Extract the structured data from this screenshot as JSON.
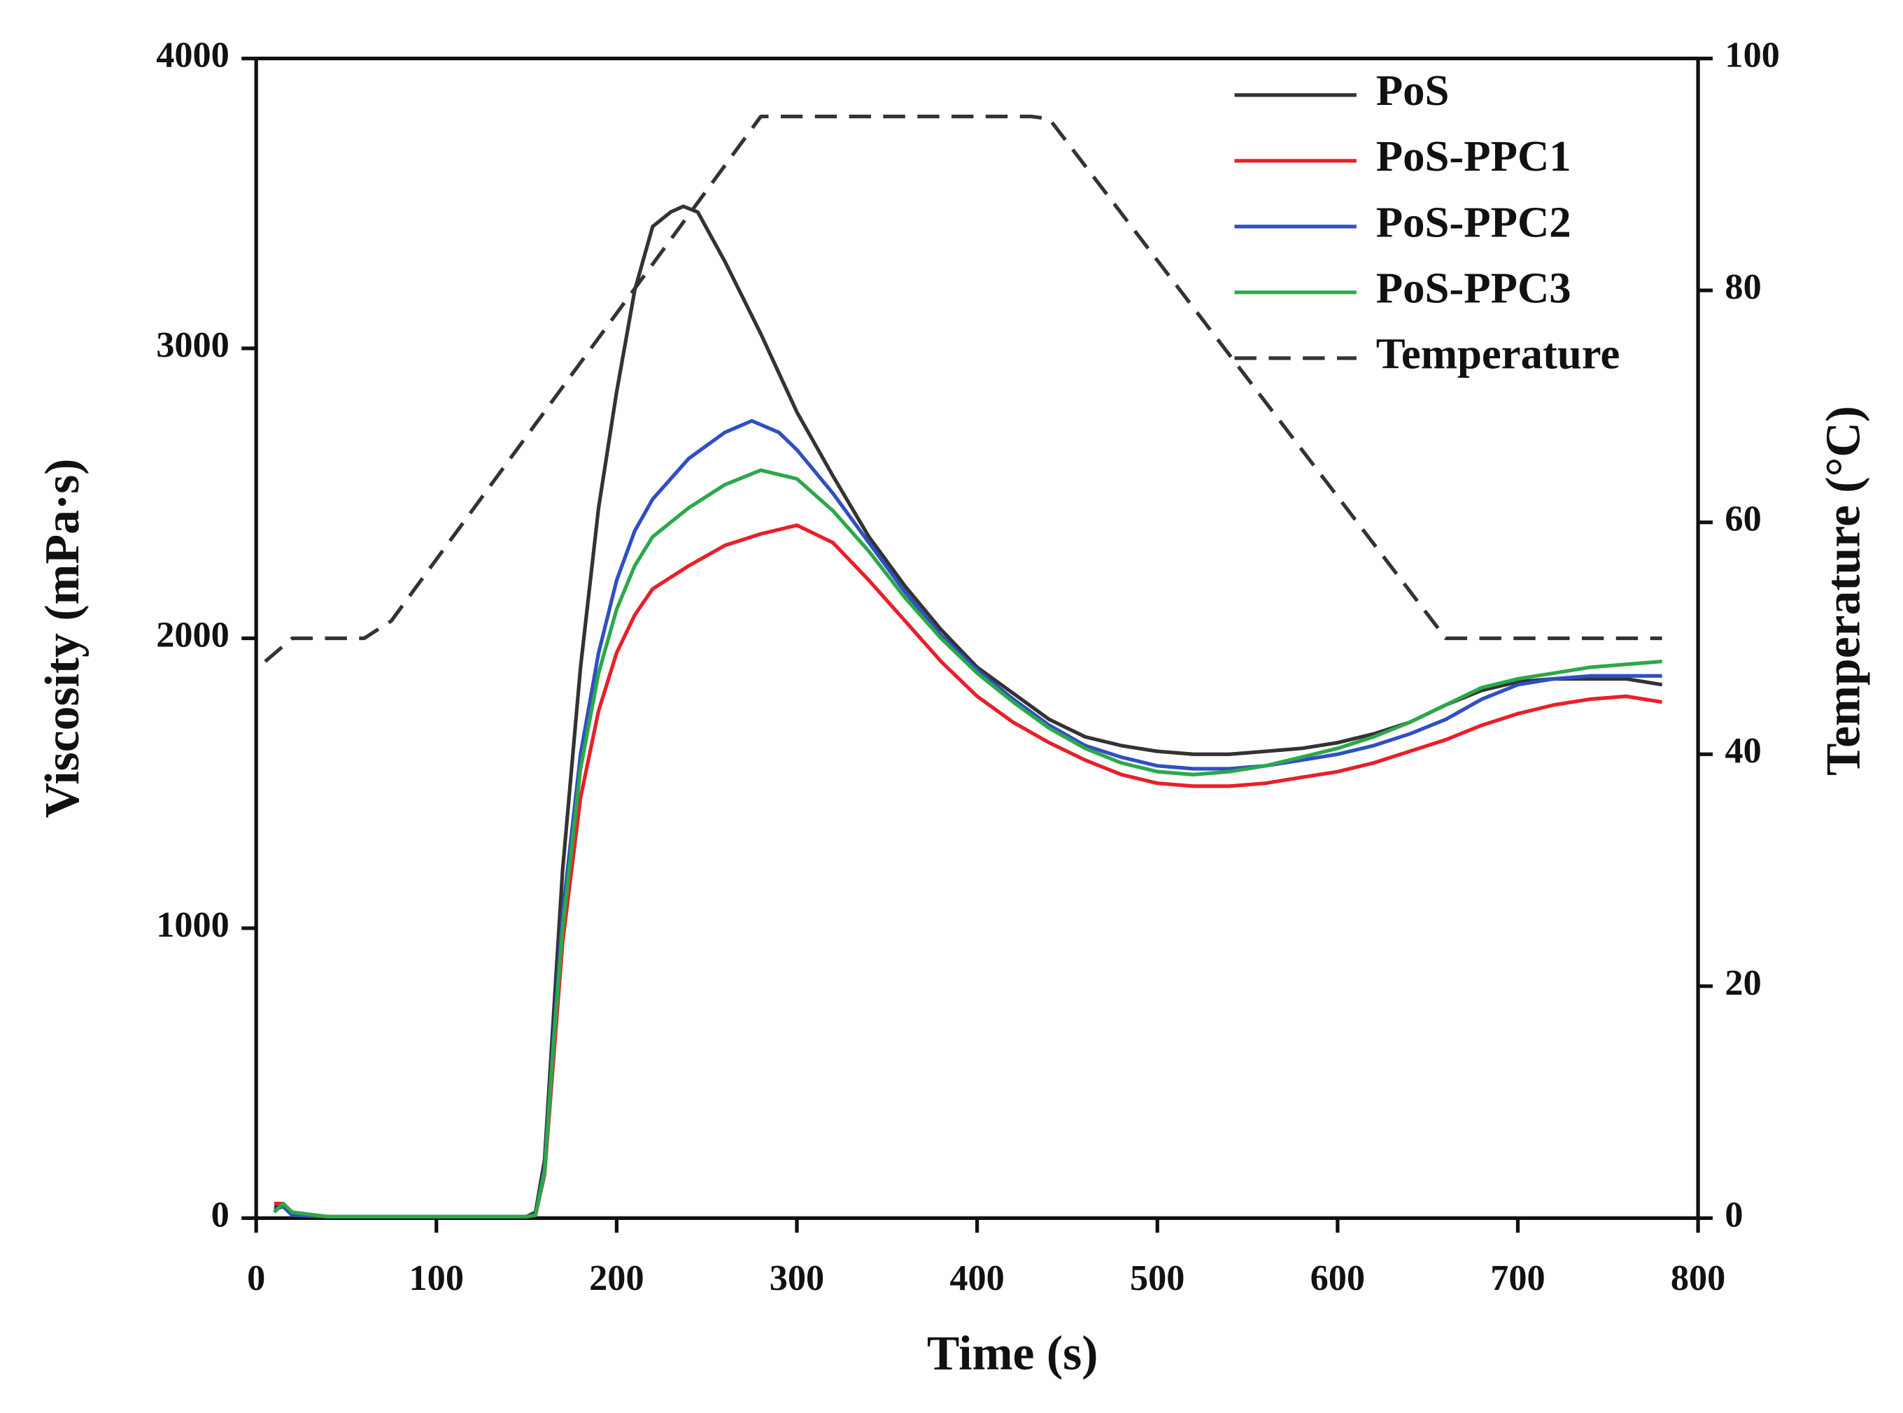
{
  "chart_data": {
    "type": "line",
    "x_label": "Time (s)",
    "y_label": "Viscosity (mPa·s)",
    "y2_label": "Temperature (°C)",
    "xlim": [
      0,
      800
    ],
    "xticks": [
      0,
      100,
      200,
      300,
      400,
      500,
      600,
      700,
      800
    ],
    "ylim": [
      0,
      4000
    ],
    "yticks": [
      0,
      1000,
      2000,
      3000,
      4000
    ],
    "y2lim": [
      0,
      100
    ],
    "y2ticks": [
      0,
      20,
      40,
      60,
      80,
      100
    ],
    "legend": "top-right",
    "series": [
      {
        "name": "PoS",
        "color": "#333333",
        "x": [
          10,
          15,
          20,
          40,
          100,
          150,
          155,
          160,
          165,
          170,
          180,
          190,
          200,
          210,
          220,
          230,
          237,
          245,
          260,
          280,
          300,
          320,
          340,
          360,
          380,
          400,
          420,
          440,
          460,
          480,
          500,
          520,
          540,
          560,
          580,
          600,
          620,
          640,
          660,
          680,
          700,
          720,
          740,
          760,
          780
        ],
        "values": [
          40,
          40,
          10,
          5,
          5,
          5,
          20,
          200,
          700,
          1200,
          1900,
          2450,
          2850,
          3200,
          3420,
          3470,
          3490,
          3470,
          3300,
          3050,
          2780,
          2560,
          2350,
          2180,
          2030,
          1900,
          1810,
          1720,
          1660,
          1630,
          1610,
          1600,
          1600,
          1610,
          1620,
          1640,
          1670,
          1710,
          1770,
          1820,
          1850,
          1860,
          1860,
          1860,
          1840
        ]
      },
      {
        "name": "PoS-PPC1",
        "color": "#e8202a",
        "x": [
          10,
          15,
          20,
          40,
          100,
          150,
          155,
          160,
          165,
          170,
          180,
          190,
          200,
          210,
          220,
          240,
          260,
          280,
          300,
          320,
          340,
          360,
          380,
          400,
          420,
          440,
          460,
          480,
          500,
          520,
          540,
          560,
          580,
          600,
          620,
          640,
          660,
          680,
          700,
          720,
          740,
          760,
          780
        ],
        "values": [
          50,
          50,
          10,
          5,
          5,
          5,
          10,
          150,
          550,
          950,
          1450,
          1750,
          1950,
          2080,
          2170,
          2250,
          2320,
          2360,
          2390,
          2330,
          2200,
          2060,
          1920,
          1800,
          1710,
          1640,
          1580,
          1530,
          1500,
          1490,
          1490,
          1500,
          1520,
          1540,
          1570,
          1610,
          1650,
          1700,
          1740,
          1770,
          1790,
          1800,
          1780
        ]
      },
      {
        "name": "PoS-PPC2",
        "color": "#2f4fc4",
        "x": [
          10,
          15,
          20,
          40,
          100,
          150,
          155,
          160,
          165,
          170,
          180,
          190,
          200,
          210,
          220,
          240,
          260,
          275,
          290,
          300,
          320,
          340,
          360,
          380,
          400,
          420,
          440,
          460,
          480,
          500,
          520,
          540,
          560,
          580,
          600,
          620,
          640,
          660,
          680,
          700,
          720,
          740,
          760,
          780
        ],
        "values": [
          30,
          40,
          10,
          5,
          5,
          5,
          10,
          170,
          620,
          1050,
          1600,
          1950,
          2200,
          2370,
          2480,
          2620,
          2710,
          2750,
          2710,
          2650,
          2500,
          2330,
          2160,
          2010,
          1890,
          1790,
          1700,
          1630,
          1590,
          1560,
          1550,
          1550,
          1560,
          1580,
          1600,
          1630,
          1670,
          1720,
          1790,
          1840,
          1860,
          1870,
          1870,
          1870
        ]
      },
      {
        "name": "PoS-PPC3",
        "color": "#2ca84a",
        "x": [
          10,
          15,
          20,
          40,
          100,
          150,
          155,
          160,
          165,
          170,
          180,
          190,
          200,
          210,
          220,
          240,
          260,
          280,
          300,
          320,
          340,
          360,
          380,
          400,
          420,
          440,
          460,
          480,
          500,
          520,
          540,
          560,
          580,
          600,
          620,
          640,
          660,
          680,
          700,
          720,
          740,
          760,
          780
        ],
        "values": [
          20,
          50,
          20,
          5,
          5,
          5,
          10,
          160,
          600,
          1000,
          1550,
          1880,
          2100,
          2250,
          2350,
          2450,
          2530,
          2580,
          2550,
          2440,
          2300,
          2140,
          2000,
          1880,
          1780,
          1690,
          1620,
          1570,
          1540,
          1530,
          1540,
          1560,
          1590,
          1620,
          1660,
          1710,
          1770,
          1830,
          1860,
          1880,
          1900,
          1910,
          1920
        ]
      },
      {
        "name": "Temperature",
        "color": "#333333",
        "axis": "y2",
        "dashed": true,
        "x": [
          5,
          20,
          60,
          75,
          280,
          300,
          430,
          440,
          660,
          780
        ],
        "values": [
          48,
          50,
          50,
          51.5,
          95,
          95,
          95,
          94.8,
          50,
          50
        ]
      }
    ]
  }
}
